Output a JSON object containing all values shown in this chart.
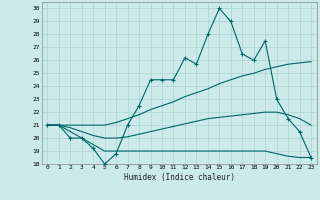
{
  "xlabel": "Humidex (Indice chaleur)",
  "background_color": "#cceaea",
  "grid_color": "#aad4d4",
  "line_color": "#006666",
  "xlim": [
    -0.5,
    23.5
  ],
  "ylim": [
    18,
    30.5
  ],
  "xticks": [
    0,
    1,
    2,
    3,
    4,
    5,
    6,
    7,
    8,
    9,
    10,
    11,
    12,
    13,
    14,
    15,
    16,
    17,
    18,
    19,
    20,
    21,
    22,
    23
  ],
  "yticks": [
    18,
    19,
    20,
    21,
    22,
    23,
    24,
    25,
    26,
    27,
    28,
    29,
    30
  ],
  "series": [
    {
      "x": [
        0,
        1,
        2,
        3,
        4,
        5,
        6,
        7,
        8,
        9,
        10,
        11,
        12,
        13,
        14,
        15,
        16,
        17,
        18,
        19,
        20,
        21,
        22,
        23
      ],
      "y": [
        21,
        21,
        20,
        20,
        19.2,
        18,
        18.8,
        21,
        22.5,
        24.5,
        24.5,
        24.5,
        26.2,
        25.7,
        28,
        30,
        29,
        26.5,
        26,
        27.5,
        23,
        21.5,
        20.5,
        18.5
      ],
      "marker": true
    },
    {
      "x": [
        0,
        1,
        2,
        3,
        4,
        5,
        6,
        7,
        8,
        9,
        10,
        11,
        12,
        13,
        14,
        15,
        16,
        17,
        18,
        19,
        20,
        21,
        22,
        23
      ],
      "y": [
        21,
        21,
        21,
        21,
        21,
        21,
        21.2,
        21.5,
        21.8,
        22.2,
        22.5,
        22.8,
        23.2,
        23.5,
        23.8,
        24.2,
        24.5,
        24.8,
        25,
        25.3,
        25.5,
        25.7,
        25.8,
        25.9
      ],
      "marker": false
    },
    {
      "x": [
        0,
        1,
        2,
        3,
        4,
        5,
        6,
        7,
        8,
        9,
        10,
        11,
        12,
        13,
        14,
        15,
        16,
        17,
        18,
        19,
        20,
        21,
        22,
        23
      ],
      "y": [
        21,
        21,
        20.8,
        20.5,
        20.2,
        20,
        20,
        20.1,
        20.3,
        20.5,
        20.7,
        20.9,
        21.1,
        21.3,
        21.5,
        21.6,
        21.7,
        21.8,
        21.9,
        22,
        22.0,
        21.8,
        21.5,
        21.0
      ],
      "marker": false
    },
    {
      "x": [
        0,
        1,
        2,
        3,
        4,
        5,
        6,
        7,
        8,
        9,
        10,
        11,
        12,
        13,
        14,
        15,
        16,
        17,
        18,
        19,
        20,
        21,
        22,
        23
      ],
      "y": [
        21,
        21,
        20.5,
        20,
        19.5,
        19,
        19,
        19,
        19,
        19,
        19,
        19,
        19,
        19,
        19,
        19,
        19,
        19,
        19,
        19,
        18.8,
        18.6,
        18.5,
        18.5
      ],
      "marker": false
    }
  ]
}
